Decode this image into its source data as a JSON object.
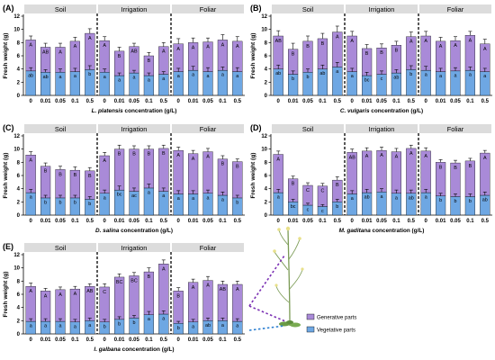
{
  "colors": {
    "generative": "#a98ad8",
    "vegetative": "#6ea7e3",
    "group_bar": "#dcdcdc",
    "divider": "#000000"
  },
  "legend": {
    "generative": "Generative parts",
    "vegetative": "Vegetative parts"
  },
  "chart_data": [
    {
      "type": "bar",
      "label": "(A)",
      "ylabel": "Fresh weight (g)",
      "ylim": [
        0,
        12
      ],
      "yticks": [
        0,
        2,
        4,
        6,
        8,
        10,
        12
      ],
      "groups": [
        "Soil",
        "Irrigation",
        "Foliar"
      ],
      "categories": [
        "0",
        "0.01",
        "0.05",
        "0.1",
        "0.5",
        "0",
        "0.01",
        "0.05",
        "0.1",
        "0.5",
        "0",
        "0.01",
        "0.05",
        "0.1",
        "0.5"
      ],
      "xlabel_species": "L. platensis",
      "xlabel_suffix": " concentration (g/L)",
      "series": [
        {
          "name": "Vegetative parts",
          "values": [
            3.7,
            3.5,
            3.5,
            3.6,
            3.9,
            3.5,
            3.0,
            3.4,
            3.0,
            3.2,
            3.6,
            3.8,
            3.6,
            3.8,
            3.6
          ],
          "err": [
            0.5,
            0.4,
            0.5,
            0.5,
            0.6,
            0.5,
            0.4,
            0.4,
            0.4,
            0.4,
            0.5,
            0.6,
            0.6,
            0.5,
            0.6
          ]
        },
        {
          "name": "Generative parts",
          "values": [
            4.7,
            3.8,
            3.8,
            4.6,
            5.5,
            4.8,
            3.7,
            4.0,
            3.0,
            4.2,
            4.2,
            4.2,
            4.5,
            4.6,
            4.6
          ],
          "err": [
            0.6,
            0.6,
            0.6,
            0.6,
            0.7,
            0.6,
            0.6,
            0.5,
            0.5,
            0.6,
            0.8,
            0.7,
            0.6,
            0.8,
            0.7
          ]
        }
      ],
      "letters_top": [
        "A",
        "AB",
        "A",
        "A",
        "A",
        "A",
        "B",
        "AB",
        "B",
        "A",
        "A",
        "A",
        "A",
        "A",
        "A"
      ],
      "letters_bottom": [
        "ab",
        "ab",
        "a",
        "a",
        "b",
        "a",
        "a",
        "a",
        "a",
        "a",
        "a",
        "a",
        "a",
        "a",
        "a"
      ]
    },
    {
      "type": "bar",
      "label": "(B)",
      "ylabel": "Fresh weight (g)",
      "ylim": [
        0,
        12
      ],
      "yticks": [
        0,
        2,
        4,
        6,
        8,
        10,
        12
      ],
      "groups": [
        "Soil",
        "Irrigation",
        "Foliar"
      ],
      "categories": [
        "0",
        "0.01",
        "0.05",
        "0.1",
        "0.5",
        "0",
        "0.01",
        "0.05",
        "0.1",
        "0.5",
        "0",
        "0.01",
        "0.05",
        "0.1",
        "0.5"
      ],
      "xlabel_species": "C. vulgaris",
      "xlabel_suffix": " concentration (g/L)",
      "series": [
        {
          "name": "Vegetative parts",
          "values": [
            4.0,
            3.2,
            3.5,
            4.0,
            4.3,
            3.6,
            3.0,
            3.2,
            3.4,
            3.9,
            3.8,
            3.6,
            3.7,
            3.8,
            3.6
          ],
          "err": [
            0.6,
            0.5,
            0.5,
            0.6,
            0.7,
            0.5,
            0.5,
            0.5,
            0.5,
            0.6,
            0.6,
            0.5,
            0.5,
            0.5,
            0.5
          ]
        },
        {
          "name": "Generative parts",
          "values": [
            5.0,
            3.8,
            4.7,
            4.6,
            5.3,
            5.4,
            4.1,
            4.0,
            4.2,
            5.0,
            5.2,
            4.6,
            4.6,
            5.3,
            4.2
          ],
          "err": [
            0.8,
            0.9,
            0.8,
            0.8,
            0.9,
            0.7,
            0.6,
            0.6,
            0.6,
            0.7,
            0.7,
            0.6,
            0.6,
            0.6,
            0.7
          ]
        }
      ],
      "letters_top": [
        "AB",
        "B",
        "B",
        "B",
        "A",
        "A",
        "B",
        "B",
        "B",
        "A",
        "A",
        "A",
        "A",
        "A",
        "A"
      ],
      "letters_bottom": [
        "ab",
        "b",
        "b",
        "ab",
        "a",
        "a",
        "bc",
        "c",
        "ab",
        "b",
        "a",
        "a",
        "a",
        "a",
        "a"
      ]
    },
    {
      "type": "bar",
      "label": "(C)",
      "ylabel": "Fresh weight (g)",
      "ylim": [
        0,
        12
      ],
      "yticks": [
        0,
        2,
        4,
        6,
        8,
        10,
        12
      ],
      "groups": [
        "Soil",
        "Irrigation",
        "Foliar"
      ],
      "categories": [
        "0",
        "0.01",
        "0.05",
        "0.1",
        "0.5",
        "0",
        "0.01",
        "0.05",
        "0.1",
        "0.5",
        "0",
        "0.01",
        "0.05",
        "0.1",
        "0.5"
      ],
      "xlabel_species": "D. salina",
      "xlabel_suffix": " concentration (g/L)",
      "series": [
        {
          "name": "Vegetative parts",
          "values": [
            3.4,
            2.6,
            2.6,
            2.6,
            2.4,
            3.3,
            3.8,
            3.6,
            4.1,
            3.6,
            3.2,
            3.2,
            3.3,
            3.0,
            2.6
          ],
          "err": [
            0.5,
            0.4,
            0.4,
            0.4,
            0.4,
            0.5,
            0.6,
            0.5,
            0.6,
            0.5,
            0.5,
            0.5,
            0.5,
            0.5,
            0.4
          ]
        },
        {
          "name": "Generative parts",
          "values": [
            5.7,
            4.8,
            4.3,
            4.2,
            4.3,
            5.7,
            6.2,
            6.4,
            5.9,
            6.5,
            6.6,
            6.1,
            6.3,
            5.5,
            5.5
          ],
          "err": [
            0.5,
            0.5,
            0.5,
            0.5,
            0.5,
            0.5,
            0.6,
            0.5,
            0.5,
            0.5,
            0.5,
            0.5,
            0.5,
            0.5,
            0.4
          ]
        }
      ],
      "letters_top": [
        "A",
        "B",
        "B",
        "B",
        "B",
        "A",
        "B",
        "B",
        "B",
        "B",
        "A",
        "A",
        "A",
        "B",
        "B"
      ],
      "letters_bottom": [
        "a",
        "b",
        "b",
        "b",
        "b",
        "a",
        "bc",
        "ac",
        "a",
        "a",
        "a",
        "a",
        "a",
        "a",
        "b"
      ]
    },
    {
      "type": "bar",
      "label": "(D)",
      "ylabel": "Fresh weight (g)",
      "ylim": [
        0,
        12
      ],
      "yticks": [
        0,
        2,
        4,
        6,
        8,
        10,
        12
      ],
      "groups": [
        "Soil",
        "Irrigation",
        "Foliar"
      ],
      "categories": [
        "0",
        "0.01",
        "0.05",
        "0.1",
        "0.5",
        "0",
        "0.01",
        "0.05",
        "0.1",
        "0.5",
        "0",
        "0.01",
        "0.05",
        "0.1",
        "0.5"
      ],
      "xlabel_species": "M. gaditana",
      "xlabel_suffix": " concentration (g/L)",
      "series": [
        {
          "name": "Vegetative parts",
          "values": [
            3.4,
            2.0,
            1.5,
            1.3,
            2.0,
            3.2,
            3.4,
            3.5,
            3.3,
            3.3,
            3.4,
            2.9,
            2.8,
            2.8,
            3.0
          ],
          "err": [
            0.5,
            0.4,
            0.3,
            0.3,
            0.4,
            0.5,
            0.5,
            0.5,
            0.5,
            0.5,
            0.5,
            0.4,
            0.4,
            0.4,
            0.5
          ]
        },
        {
          "name": "Generative parts",
          "values": [
            5.8,
            3.5,
            3.0,
            3.1,
            3.3,
            6.3,
            6.3,
            6.3,
            6.3,
            6.8,
            6.3,
            5.1,
            5.1,
            5.4,
            6.4
          ],
          "err": [
            0.5,
            0.4,
            0.4,
            0.4,
            0.5,
            0.5,
            0.5,
            0.5,
            0.5,
            0.5,
            0.5,
            0.4,
            0.4,
            0.4,
            0.4
          ]
        }
      ],
      "letters_top": [
        "A",
        "B",
        "C",
        "C",
        "B",
        "AB",
        "A",
        "A",
        "A",
        "A",
        "A",
        "B",
        "B",
        "B",
        "A"
      ],
      "letters_bottom": [
        "a",
        "bc",
        "c",
        "c",
        "b",
        "a",
        "ab",
        "a",
        "a",
        "ab",
        "a",
        "b",
        "b",
        "b",
        "ab"
      ]
    },
    {
      "type": "bar",
      "label": "(E)",
      "ylabel": "Fresh weight (g)",
      "ylim": [
        0,
        12
      ],
      "yticks": [
        0,
        2,
        4,
        6,
        8,
        10,
        12
      ],
      "groups": [
        "Soil",
        "Irrigation",
        "Foliar"
      ],
      "categories": [
        "0",
        "0.01",
        "0.05",
        "0.1",
        "0.5",
        "0",
        "0.01",
        "0.05",
        "0.1",
        "0.5",
        "0",
        "0.01",
        "0.05",
        "0.1",
        "0.5"
      ],
      "xlabel_species": "I. galbana",
      "xlabel_suffix": " concentration (g/L)",
      "series": [
        {
          "name": "Vegetative parts",
          "values": [
            1.9,
            1.9,
            1.9,
            1.8,
            2.0,
            1.8,
            2.2,
            2.4,
            2.9,
            3.0,
            1.6,
            1.8,
            2.0,
            2.0,
            1.9
          ],
          "err": [
            0.4,
            0.4,
            0.4,
            0.4,
            0.4,
            0.4,
            0.4,
            0.4,
            0.5,
            0.5,
            0.3,
            0.4,
            0.4,
            0.4,
            0.4
          ]
        },
        {
          "name": "Generative parts",
          "values": [
            5.3,
            4.6,
            4.8,
            5.0,
            5.2,
            5.3,
            6.4,
            6.4,
            6.5,
            7.6,
            4.9,
            6.0,
            6.1,
            5.5,
            5.6
          ],
          "err": [
            0.5,
            0.4,
            0.4,
            0.4,
            0.4,
            0.5,
            0.5,
            0.5,
            0.6,
            0.6,
            0.5,
            0.5,
            0.6,
            0.5,
            0.5
          ]
        }
      ],
      "letters_top": [
        "A",
        "A",
        "A",
        "A",
        "AB",
        "C",
        "BC",
        "BC",
        "B",
        "A",
        "B",
        "A",
        "A",
        "AB",
        "A"
      ],
      "letters_bottom": [
        "a",
        "a",
        "a",
        "a",
        "a",
        "b",
        "b",
        "b",
        "a",
        "a",
        "b",
        "a",
        "ab",
        "a",
        "a"
      ]
    }
  ]
}
